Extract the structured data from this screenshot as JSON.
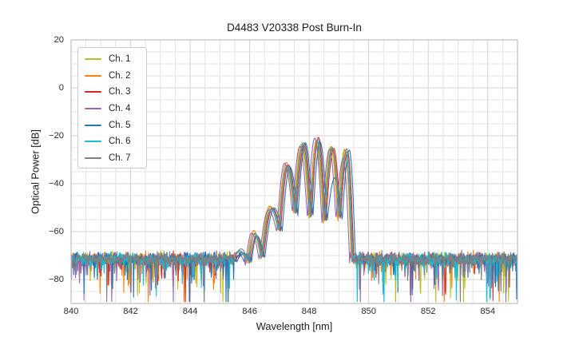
{
  "figure": {
    "title": "D4483 V20338 Post Burn-In",
    "background_color": "#ffffff"
  },
  "chart_data": {
    "type": "line",
    "title": "D4483 V20338 Post Burn-In",
    "xlabel": "Wavelength [nm]",
    "ylabel": "Optical Power [dB]",
    "xlim": [
      840,
      855
    ],
    "ylim": [
      -90,
      20
    ],
    "xticks": [
      840,
      842,
      844,
      846,
      848,
      850,
      852,
      854
    ],
    "yticks": [
      20,
      0,
      -20,
      -40,
      -60,
      -80
    ],
    "grid": {
      "visible": true,
      "minor_x_step_nm": 0.5,
      "minor_y_step_db": 5,
      "minor_color": "#e4e4e4",
      "major_color": "#d2d2d2",
      "spine_color": "#bfbfbf"
    },
    "legend": {
      "position": "upper left",
      "border_color": "#cccccc"
    },
    "series": [
      {
        "name": "Ch. 1",
        "color": "#bcbd22",
        "offset_nm": -0.05
      },
      {
        "name": "Ch. 2",
        "color": "#ff7f0e",
        "offset_nm": -0.03
      },
      {
        "name": "Ch. 3",
        "color": "#d62728",
        "offset_nm": 0.04
      },
      {
        "name": "Ch. 4",
        "color": "#9467bd",
        "offset_nm": -0.1
      },
      {
        "name": "Ch. 5",
        "color": "#1f77b4",
        "offset_nm": 0.09
      },
      {
        "name": "Ch. 6",
        "color": "#17becf",
        "offset_nm": -0.01
      },
      {
        "name": "Ch. 7",
        "color": "#7f7f7f",
        "offset_nm": 0.01
      }
    ],
    "envelope_keypoints": [
      {
        "x": 845.42,
        "y": -74.0,
        "kind": "valley"
      },
      {
        "x": 845.7,
        "y": -68.3,
        "kind": "peak"
      },
      {
        "x": 845.96,
        "y": -74.0,
        "kind": "valley"
      },
      {
        "x": 846.17,
        "y": -61.2,
        "kind": "peak"
      },
      {
        "x": 846.42,
        "y": -71.5,
        "kind": "valley"
      },
      {
        "x": 846.72,
        "y": -50.2,
        "kind": "peak"
      },
      {
        "x": 847.0,
        "y": -59.5,
        "kind": "valley"
      },
      {
        "x": 847.27,
        "y": -32.3,
        "kind": "peak"
      },
      {
        "x": 847.53,
        "y": -52.5,
        "kind": "valley"
      },
      {
        "x": 847.79,
        "y": -23.4,
        "kind": "peak"
      },
      {
        "x": 848.04,
        "y": -54.5,
        "kind": "valley"
      },
      {
        "x": 848.28,
        "y": -21.8,
        "kind": "peak"
      },
      {
        "x": 848.53,
        "y": -56.0,
        "kind": "valley"
      },
      {
        "x": 848.78,
        "y": -25.2,
        "kind": "peak"
      },
      {
        "x": 849.01,
        "y": -55.0,
        "kind": "valley"
      },
      {
        "x": 849.25,
        "y": -26.4,
        "kind": "peak"
      },
      {
        "x": 849.48,
        "y": -78.0,
        "kind": "valley"
      }
    ],
    "peak_overrides": {
      "1_3": -59.5,
      "6_9": -22.9,
      "6_11": -21.4,
      "5_11": -22.4,
      "5_13": -24.9,
      "4_13": -37.5,
      "4_15": -26.0,
      "2_15": -26.6,
      "3_15": -29.5
    },
    "noise": {
      "mean_db": -71.5,
      "sigma_db": 1.25,
      "spike_prob": 0.12,
      "spike_mean_db": 5.0,
      "min_db": -89.3
    },
    "sample_step_nm": 0.015
  }
}
